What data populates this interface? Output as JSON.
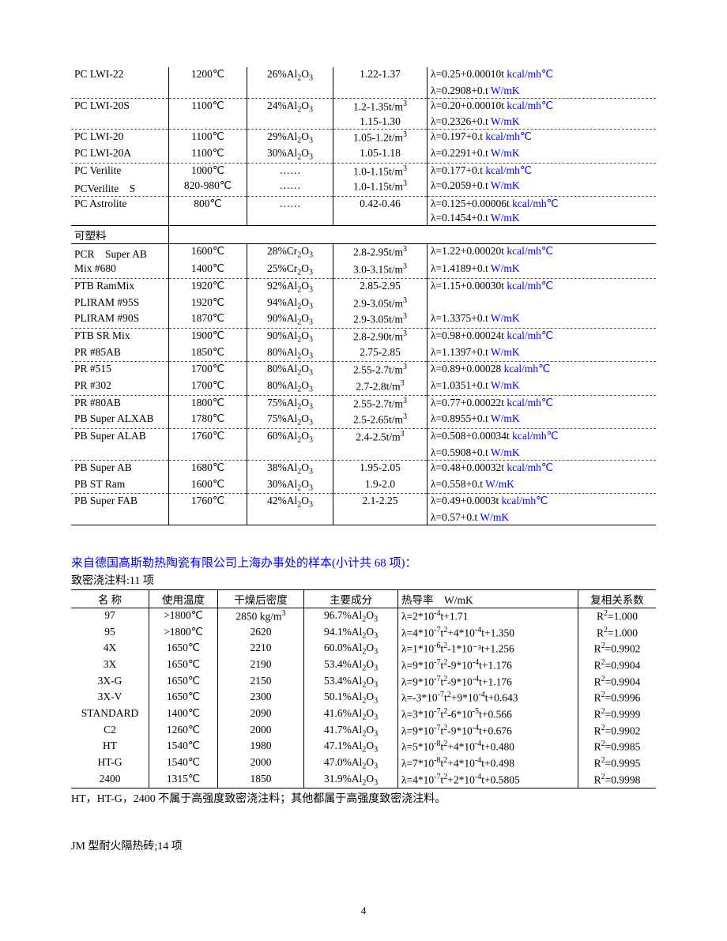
{
  "table1": {
    "groups": [
      {
        "border": "dash",
        "rows": [
          {
            "name": "PC LWI-22",
            "temp": "1200℃",
            "comp": "26%Al₂O₃",
            "dens": "1.22-1.37",
            "lambda": "λ=0.25+0.00010t",
            "lambda_unit": "kcal/mh℃"
          },
          {
            "name": "",
            "temp": "",
            "comp": "",
            "dens": "",
            "lambda": "λ=0.2908+0.t",
            "lambda_unit": "W/mK"
          }
        ]
      },
      {
        "border": "dash",
        "rows": [
          {
            "name": "PC LWI-20S",
            "temp": "1100℃",
            "comp": "24%Al₂O₃",
            "dens": "1.2-1.35t/m³",
            "lambda": "λ=0.20+0.00010t",
            "lambda_unit": "kcal/mh℃"
          },
          {
            "name": "",
            "temp": "",
            "comp": "",
            "dens": "1.15-1.30",
            "lambda": "λ=0.2326+0.t",
            "lambda_unit": "W/mK"
          }
        ]
      },
      {
        "border": "dash",
        "rows": [
          {
            "name": "PC LWI-20",
            "temp": "1100℃",
            "comp": "29%Al₂O₃",
            "dens": "1.05-1.2t/m³",
            "lambda": "λ=0.197+0.t",
            "lambda_unit": "kcal/mh℃"
          },
          {
            "name": "PC LWI-20A",
            "temp": "1100℃",
            "comp": "30%Al₂O₃",
            "dens": "1.05-1.18",
            "lambda": "λ=0.2291+0.t",
            "lambda_unit": "W/mK"
          }
        ]
      },
      {
        "border": "dash",
        "rows": [
          {
            "name": "PC Verilite",
            "temp": "1000℃",
            "comp": "……",
            "dens": "1.0-1.15t/m³",
            "lambda": "λ=0.177+0.t",
            "lambda_unit": "kcal/mh℃"
          },
          {
            "name": "PCVerilite　S",
            "temp": "820-980℃",
            "comp": "……",
            "dens": "1.0-1.15t/m³",
            "lambda": "λ=0.2059+0.t",
            "lambda_unit": "W/mK"
          }
        ]
      },
      {
        "border": "solid",
        "rows": [
          {
            "name": "PC Astrolite",
            "temp": "800℃",
            "comp": "……",
            "dens": "0.42-0.46",
            "lambda": "λ=0.125+0.00006t",
            "lambda_unit": "kcal/mh℃"
          },
          {
            "name": "",
            "temp": "",
            "comp": "",
            "dens": "",
            "lambda": "λ=0.1454+0.t",
            "lambda_unit": "W/mK"
          }
        ]
      }
    ],
    "section_label": "可塑料",
    "groups2": [
      {
        "border": "dash",
        "rows": [
          {
            "name": "PCR　Super AB",
            "temp": "1600℃",
            "comp": "28%Cr₂O₃",
            "dens": "2.8-2.95t/m³",
            "lambda": "λ=1.22+0.00020t",
            "lambda_unit": "kcal/mh℃"
          },
          {
            "name": "Mix #680",
            "temp": "1400℃",
            "comp": "25%Cr₂O₃",
            "dens": "3.0-3.15t/m³",
            "lambda": "λ=1.4189+0.t",
            "lambda_unit": "W/mK"
          }
        ]
      },
      {
        "border": "dash",
        "rows": [
          {
            "name": "PTB RamMix",
            "temp": "1920℃",
            "comp": "92%Al₂O₃",
            "dens": "2.85-2.95",
            "lambda": "λ=1.15+0.00030t",
            "lambda_unit": "kcal/mh℃"
          },
          {
            "name": "PLIRAM #95S",
            "temp": "1920℃",
            "comp": "94%Al₂O₃",
            "dens": "2.9-3.05t/m³",
            "lambda": "",
            "lambda_unit": ""
          },
          {
            "name": "PLIRAM #90S",
            "temp": "1870℃",
            "comp": "90%Al₂O₃",
            "dens": "2.9-3.05t/m³",
            "lambda": "λ=1.3375+0.t",
            "lambda_unit": "W/mK"
          }
        ]
      },
      {
        "border": "dash",
        "rows": [
          {
            "name": "PTB SR Mix",
            "temp": "1900℃",
            "comp": "90%Al₂O₃",
            "dens": "2.8-2.90t/m³",
            "lambda": "λ=0.98+0.00024t",
            "lambda_unit": "kcal/mh℃"
          },
          {
            "name": "PR #85AB",
            "temp": "1850℃",
            "comp": "80%Al₂O₃",
            "dens": "2.75-2.85",
            "lambda": "λ=1.1397+0.t",
            "lambda_unit": "W/mK"
          }
        ]
      },
      {
        "border": "dash",
        "rows": [
          {
            "name": "PR #515",
            "temp": "1700℃",
            "comp": "80%Al₂O₃",
            "dens": "2.55-2.7t/m³",
            "lambda": "λ=0.89+0.00028",
            "lambda_unit": "kcal/mh℃"
          },
          {
            "name": "PR #302",
            "temp": "1700℃",
            "comp": "80%Al₂O₃",
            "dens": "2.7-2.8t/m³",
            "lambda": "λ=1.0351+0.t",
            "lambda_unit": "W/mK"
          }
        ]
      },
      {
        "border": "dash",
        "rows": [
          {
            "name": "PR #80AB",
            "temp": "1800℃",
            "comp": "75%Al₂O₃",
            "dens": "2.55-2.7t/m³",
            "lambda": "λ=0.77+0.00022t",
            "lambda_unit": "kcal/mh℃"
          },
          {
            "name": "PB Super ALXAB",
            "temp": "1780℃",
            "comp": "75%Al₂O₃",
            "dens": "2.5-2.65t/m³",
            "lambda": "λ=0.8955+0.t",
            "lambda_unit": "W/mK"
          }
        ]
      },
      {
        "border": "dash",
        "rows": [
          {
            "name": "PB Super ALAB",
            "temp": "1760℃",
            "comp": "60%Al₂O₃",
            "dens": "2.4-2.5t/m³",
            "lambda": "λ=0.508+0.00034t",
            "lambda_unit": "kcal/mh℃"
          },
          {
            "name": "",
            "temp": "",
            "comp": "",
            "dens": "",
            "lambda": "λ=0.5908+0.t",
            "lambda_unit": "W/mK"
          }
        ]
      },
      {
        "border": "dash",
        "rows": [
          {
            "name": "PB Super AB",
            "temp": "1680℃",
            "comp": "38%Al₂O₃",
            "dens": "1.95-2.05",
            "lambda": "λ=0.48+0.00032t",
            "lambda_unit": "kcal/mh℃"
          },
          {
            "name": "PB ST Ram",
            "temp": "1600℃",
            "comp": "30%Al₂O₃",
            "dens": "1.9-2.0",
            "lambda": "λ=0.558+0.t",
            "lambda_unit": "W/mK"
          }
        ]
      },
      {
        "border": "solid",
        "rows": [
          {
            "name": "PB Super FAB",
            "temp": "1760℃",
            "comp": "42%Al₂O₃",
            "dens": "2.1-2.25",
            "lambda": "λ=0.49+0.0003t",
            "lambda_unit": "kcal/mh℃"
          },
          {
            "name": "",
            "temp": "",
            "comp": "",
            "dens": "",
            "lambda": "λ=0.57+0.t",
            "lambda_unit": "W/mK"
          }
        ]
      }
    ]
  },
  "heading2": "来自德国高斯勒热陶瓷有限公司上海办事处的样本(小计共 68 项)：",
  "subhead2": "致密浇注料:11 项",
  "table2": {
    "headers": [
      "名 称",
      "使用温度",
      "干燥后密度",
      "主要成分",
      "热导率　W/mK",
      "复相关系数"
    ],
    "rows": [
      {
        "name": "97",
        "temp": ">1800℃",
        "dens": "2850 kg/m³",
        "comp": "96.7%Al₂O₃",
        "lambda": "λ=2*10⁻⁴t+1.71",
        "r2": "R²=1.000"
      },
      {
        "name": "95",
        "temp": ">1800℃",
        "dens": "2620",
        "comp": "94.1%Al₂O₃",
        "lambda": "λ=4*10⁻⁷t²+4*10⁻⁴t+1.350",
        "r2": "R²=1.000"
      },
      {
        "name": "4X",
        "temp": "1650℃",
        "dens": "2210",
        "comp": "60.0%Al₂O₃",
        "lambda": "λ=1*10⁻⁶t²-1*10⁻³t+1.256",
        "r2": "R²=0.9902"
      },
      {
        "name": "3X",
        "temp": "1650℃",
        "dens": "2190",
        "comp": "53.4%Al₂O₃",
        "lambda": "λ=9*10⁻⁷t²-9*10⁻⁴t+1.176",
        "r2": "R²=0.9904"
      },
      {
        "name": "3X-G",
        "temp": "1650℃",
        "dens": "2150",
        "comp": "53.4%Al₂O₃",
        "lambda": "λ=9*10⁻⁷t²-9*10⁻⁴t+1.176",
        "r2": "R²=0.9904"
      },
      {
        "name": "3X-V",
        "temp": "1650℃",
        "dens": "2300",
        "comp": "50.1%Al₂O₃",
        "lambda": "λ=-3*10⁻⁷t²+9*10⁻⁴t+0.643",
        "r2": "R²=0.9996"
      },
      {
        "name": "STANDARD",
        "temp": "1400℃",
        "dens": "2090",
        "comp": "41.6%Al₂O₃",
        "lambda": "λ=3*10⁻⁷t²-6*10⁻⁵t+0.566",
        "r2": "R²=0.9999"
      },
      {
        "name": "C2",
        "temp": "1260℃",
        "dens": "2000",
        "comp": "41.7%Al₂O₃",
        "lambda": "λ=9*10⁻⁷t²-9*10⁻⁴t+0.676",
        "r2": "R²=0.9902"
      },
      {
        "name": "HT",
        "temp": "1540℃",
        "dens": "1980",
        "comp": "47.1%Al₂O₃",
        "lambda": "λ=5*10⁻⁸t²+4*10⁻⁴t+0.480",
        "r2": "R²=0.9985"
      },
      {
        "name": "HT-G",
        "temp": "1540℃",
        "dens": "2000",
        "comp": "47.0%Al₂O₃",
        "lambda": "λ=7*10⁻⁸t²+4*10⁻⁴t+0.498",
        "r2": "R²=0.9995"
      },
      {
        "name": "2400",
        "temp": "1315℃",
        "dens": "1850",
        "comp": "31.9%Al₂O₃",
        "lambda": "λ=4*10⁻⁷t²+2*10⁻⁴t+0.5805",
        "r2": "R²=0.9998"
      }
    ]
  },
  "note": "HT，HT-G，2400 不属于高强度致密浇注料；其他都属于高强度致密浇注料。",
  "jm": "JM 型耐火隔热砖;14 项",
  "pagenum": "4"
}
